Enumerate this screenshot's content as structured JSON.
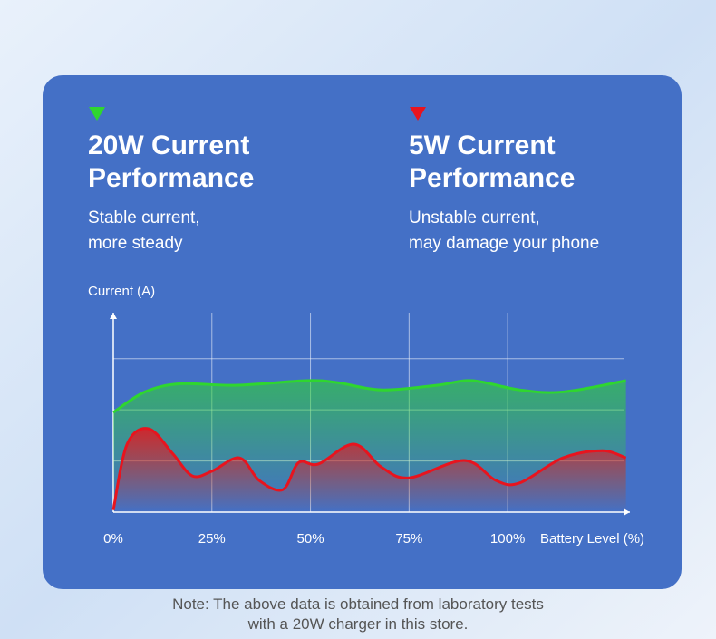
{
  "chart_data": {
    "type": "line",
    "y_label": "Current (A)",
    "x_label": "Battery Level (%)",
    "xlim": [
      0,
      131
    ],
    "xticks": [
      {
        "value": 0,
        "label": "0%"
      },
      {
        "value": 25,
        "label": "25%"
      },
      {
        "value": 50,
        "label": "50%"
      },
      {
        "value": 75,
        "label": "75%"
      },
      {
        "value": 100,
        "label": "100%"
      }
    ],
    "ylim": [
      0,
      3.9
    ],
    "ygrid": [
      1,
      2,
      3
    ],
    "series": [
      {
        "name": "20W Current Performance",
        "description": [
          "Stable current,",
          "more steady"
        ],
        "color": "#2fd62f",
        "x": [
          0,
          8,
          17,
          31,
          49,
          57,
          68,
          82,
          91,
          103,
          114,
          130
        ],
        "values": [
          1.95,
          2.35,
          2.51,
          2.48,
          2.57,
          2.53,
          2.39,
          2.48,
          2.57,
          2.39,
          2.35,
          2.57
        ]
      },
      {
        "name": "5W Current Performance",
        "description": [
          "Unstable current,",
          "may damage your phone"
        ],
        "color": "#e8141e",
        "x": [
          0,
          3.5,
          9,
          15,
          20,
          25,
          32,
          37,
          43,
          47,
          52,
          61,
          68,
          75,
          89,
          97,
          103,
          114,
          124,
          130
        ],
        "values": [
          0.04,
          1.33,
          1.63,
          1.15,
          0.71,
          0.8,
          1.06,
          0.62,
          0.44,
          0.97,
          0.94,
          1.33,
          0.88,
          0.67,
          1.01,
          0.62,
          0.57,
          1.06,
          1.2,
          1.06
        ]
      }
    ],
    "note": [
      "Note: The above data is obtained from laboratory tests",
      "with a 20W charger in this store."
    ]
  }
}
